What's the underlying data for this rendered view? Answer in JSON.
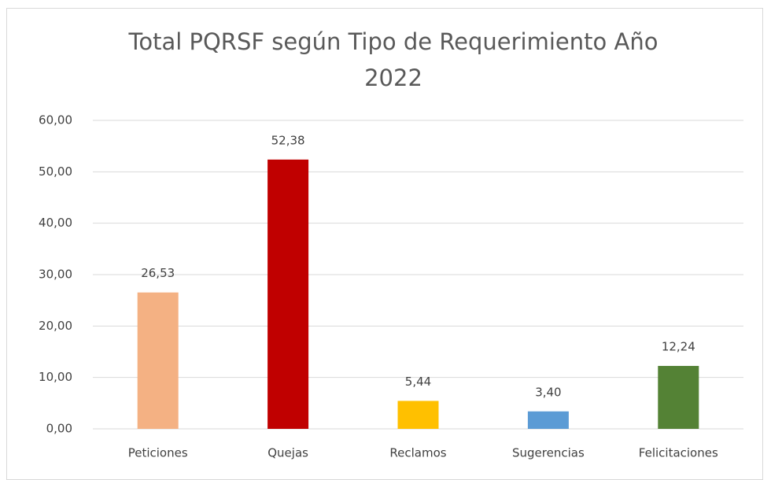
{
  "chart_data": {
    "type": "bar",
    "title": "Total PQRSF según Tipo de Requerimiento Año 2022",
    "categories": [
      "Peticiones",
      "Quejas",
      "Reclamos",
      "Sugerencias",
      "Felicitaciones"
    ],
    "values": [
      26.53,
      52.38,
      5.44,
      3.4,
      12.24
    ],
    "value_labels": [
      "26,53",
      "52,38",
      "5,44",
      "3,40",
      "12,24"
    ],
    "colors": [
      "#f4b183",
      "#c00000",
      "#ffc000",
      "#5b9bd5",
      "#548235"
    ],
    "ylim": [
      0,
      60
    ],
    "yticks": [
      {
        "value": 0,
        "label": "0,00"
      },
      {
        "value": 10,
        "label": "10,00"
      },
      {
        "value": 20,
        "label": "20,00"
      },
      {
        "value": 30,
        "label": "30,00"
      },
      {
        "value": 40,
        "label": "40,00"
      },
      {
        "value": 50,
        "label": "50,00"
      },
      {
        "value": 60,
        "label": "60,00"
      }
    ],
    "grid": true
  }
}
